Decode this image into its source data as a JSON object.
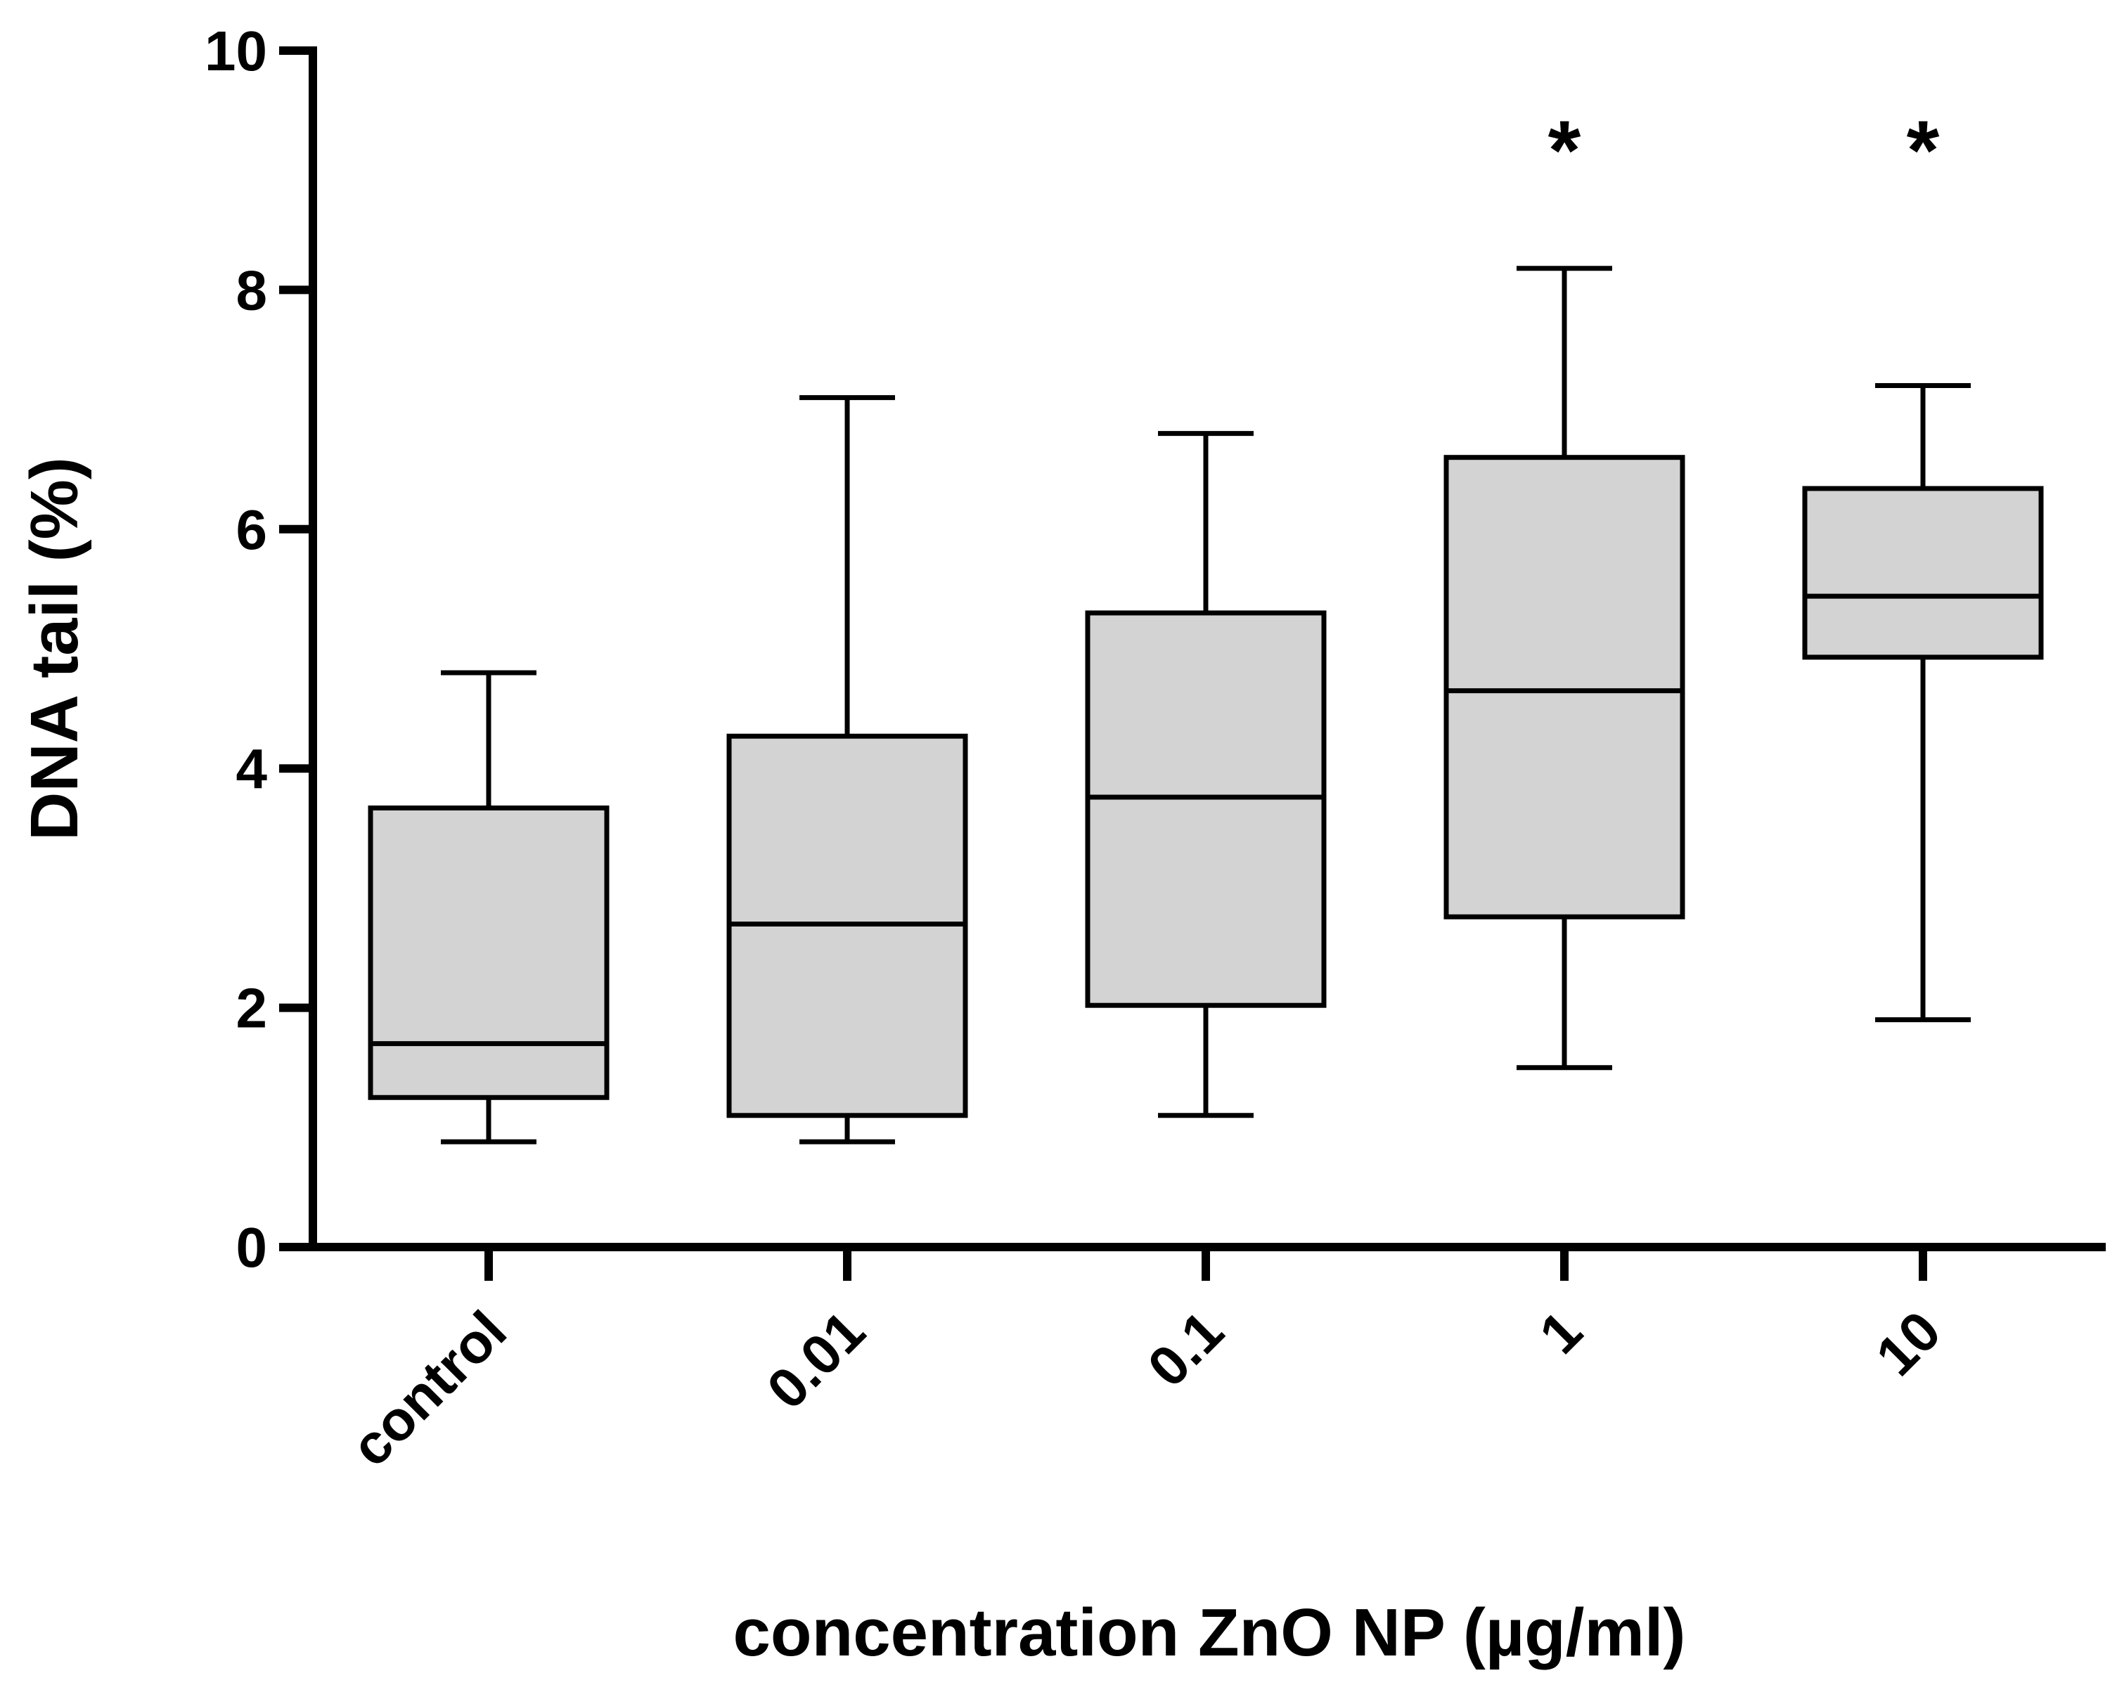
{
  "chart_data": {
    "type": "boxplot",
    "title": "",
    "xlabel": "concentration ZnO NP (µg/ml)",
    "ylabel": "DNA tail (%)",
    "ylim": [
      0,
      10
    ],
    "yticks": [
      0,
      2,
      4,
      6,
      8,
      10
    ],
    "grid": false,
    "legend": "none",
    "colors": {
      "box_fill": "#d3d3d3",
      "stroke": "#000000"
    },
    "categories": [
      "control",
      "0.01",
      "0.1",
      "1",
      "10"
    ],
    "boxes": [
      {
        "category": "control",
        "min": 0.88,
        "q1": 1.25,
        "median": 1.7,
        "q3": 3.67,
        "max": 4.8,
        "significance": ""
      },
      {
        "category": "0.01",
        "min": 0.88,
        "q1": 1.1,
        "median": 2.7,
        "q3": 4.27,
        "max": 7.1,
        "significance": ""
      },
      {
        "category": "0.1",
        "min": 1.1,
        "q1": 2.02,
        "median": 3.76,
        "q3": 5.3,
        "max": 6.8,
        "significance": ""
      },
      {
        "category": "1",
        "min": 1.5,
        "q1": 2.76,
        "median": 4.65,
        "q3": 6.6,
        "max": 8.18,
        "significance": "*"
      },
      {
        "category": "10",
        "min": 1.9,
        "q1": 4.93,
        "median": 5.44,
        "q3": 6.34,
        "max": 7.2,
        "significance": "*"
      }
    ]
  }
}
